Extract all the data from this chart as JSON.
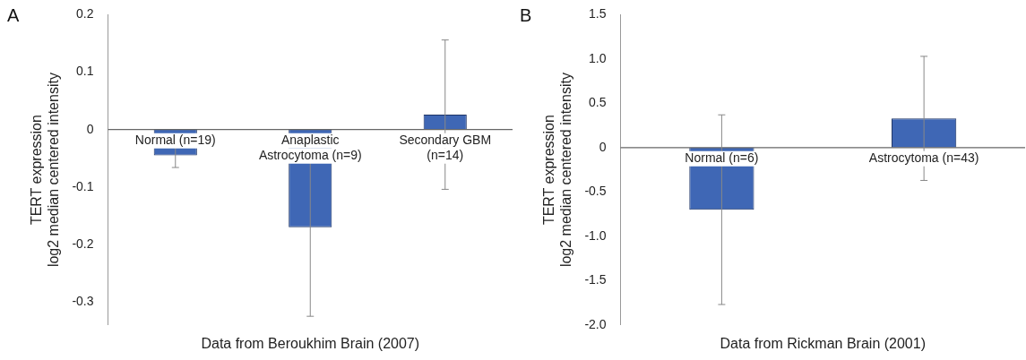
{
  "chart_data": [
    {
      "type": "bar",
      "annotations": [
        "A"
      ],
      "xlabel": "Data from Beroukhim Brain (2007)",
      "ylabel": "TERT expression\nlog2 median centered intensity",
      "categories": [
        "Normal (n=19)",
        "Anaplastic Astrocytoma (n=9)",
        "Secondary GBM (n=14)"
      ],
      "values": [
        -0.045,
        -0.17,
        0.026
      ],
      "errors": [
        0.021,
        0.155,
        0.13
      ],
      "color": "#3f67b5",
      "ylim": [
        -0.34,
        0.2
      ],
      "yticks": [
        -0.3,
        -0.2,
        -0.1,
        0,
        0.1,
        0.2
      ],
      "grid": false,
      "legend": false
    },
    {
      "type": "bar",
      "annotations": [
        "B"
      ],
      "xlabel": "Data from Rickman Brain (2001)",
      "ylabel": "TERT expression\nlog2 median centered intensity",
      "categories": [
        "Normal (n=6)",
        "Astrocytoma (n=43)"
      ],
      "values": [
        -0.7,
        0.33
      ],
      "errors": [
        1.07,
        0.7
      ],
      "color": "#3f67b5",
      "ylim": [
        -2.0,
        1.5
      ],
      "yticks": [
        {
          "value": -2.0,
          "label": "-2.0"
        },
        {
          "value": -1.5,
          "label": "-1.5"
        },
        {
          "value": -1.0,
          "label": "-1.0"
        },
        {
          "value": -0.5,
          "label": "-0.5"
        },
        0,
        {
          "value": 0.5,
          "label": "0.5"
        },
        {
          "value": 1.0,
          "label": "1.0"
        },
        {
          "value": 1.5,
          "label": "1.5"
        }
      ],
      "grid": false,
      "legend": false
    }
  ]
}
